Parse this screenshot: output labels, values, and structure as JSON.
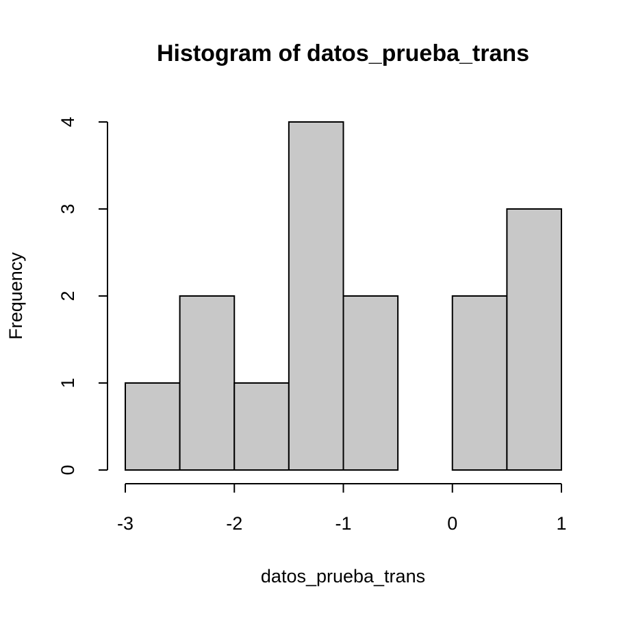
{
  "chart_data": {
    "type": "histogram",
    "title": "Histogram of datos_prueba_trans",
    "x_label": "datos_prueba_trans",
    "y_label": "Frequency",
    "bins": [
      -3,
      -2.5,
      -2,
      -1.5,
      -1,
      -0.5,
      0,
      0.5,
      1
    ],
    "values": [
      1,
      2,
      1,
      4,
      2,
      0,
      2,
      3
    ],
    "color": "#c8c8c8",
    "xlim": [
      -3,
      1
    ],
    "xticks": [
      -3,
      -2,
      -1,
      0,
      1
    ],
    "ylim": [
      0,
      4
    ],
    "yticks": [
      0,
      1,
      2,
      3,
      4
    ]
  }
}
